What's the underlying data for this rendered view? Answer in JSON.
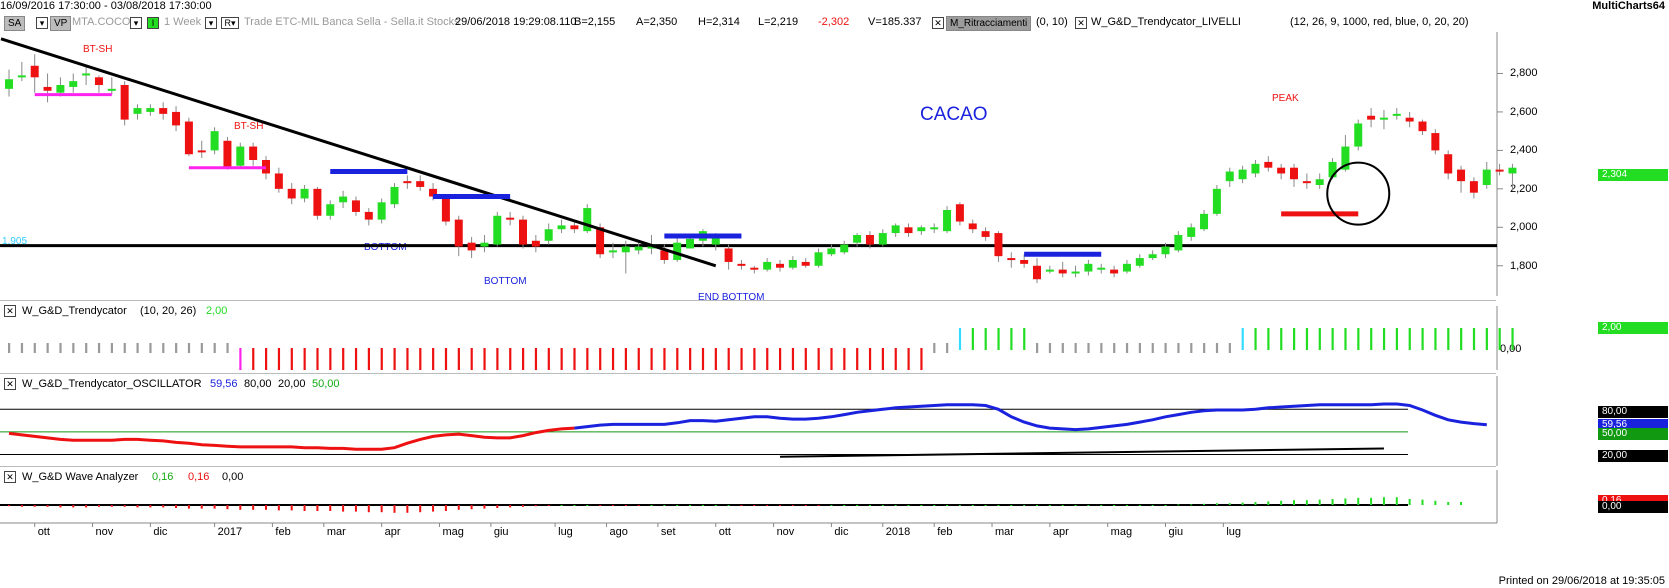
{
  "header": {
    "date_range": "16/09/2016 17:30:00 - 03/08/2018 17:30:00",
    "app_name": "MultiCharts64",
    "sa_label": "SA",
    "vp_label": "VP",
    "symbol": "MTA.COCO",
    "interval": "1 Week",
    "r_label": "R",
    "feed": "Trade ETC-MIL Banca Sella - Sella.it Stocks",
    "datetime": "29/06/2018 19:29:08.110",
    "bid": "B=2,155",
    "ask": "A=2,350",
    "high": "H=2,314",
    "low": "L=2,219",
    "change": "-2,302",
    "volume": "V=185.337",
    "study1_name": "M_Ritracciamenti",
    "study1_params": "(0, 10)",
    "study2_name": "W_G&D_Trendycator_LIVELLI",
    "study2_params": "(12, 26, 9, 1000, red, blue, 0, 20, 20)"
  },
  "footer": {
    "printed": "Printed on 29/06/2018 at 19:35:05"
  },
  "colors": {
    "up": "#22dd22",
    "down": "#ee1111",
    "blue": "#1a22dd",
    "magenta": "#ff22ee",
    "price_badge": "#22dd22"
  },
  "chart_data": [
    {
      "type": "candlestick",
      "title": "CACAO",
      "price_badge": "2,304",
      "left_label": "1,905",
      "y_ticks": [
        "2,800",
        "2,600",
        "2,400",
        "2,200",
        "2,000",
        "1,800"
      ],
      "y_tick_values": [
        2800,
        2600,
        2400,
        2200,
        2000,
        1800
      ],
      "ylim": [
        1700,
        3000
      ],
      "annotations": [
        "BT-SH",
        "BT-SH",
        "BOTTOM",
        "BOTTOM",
        "END BOTTOM",
        "PEAK"
      ],
      "horizontal_line": 1905,
      "candles": [
        [
          2720,
          2770,
          2820,
          2680
        ],
        [
          2780,
          2790,
          2860,
          2760
        ],
        [
          2840,
          2780,
          2900,
          2700
        ],
        [
          2730,
          2710,
          2800,
          2650
        ],
        [
          2700,
          2740,
          2780,
          2680
        ],
        [
          2730,
          2760,
          2800,
          2700
        ],
        [
          2790,
          2800,
          2840,
          2740
        ],
        [
          2780,
          2740,
          2790,
          2700
        ],
        [
          2710,
          2720,
          2780,
          2690
        ],
        [
          2740,
          2560,
          2760,
          2530
        ],
        [
          2590,
          2620,
          2640,
          2560
        ],
        [
          2600,
          2620,
          2640,
          2580
        ],
        [
          2620,
          2590,
          2650,
          2560
        ],
        [
          2600,
          2530,
          2630,
          2500
        ],
        [
          2550,
          2380,
          2570,
          2370
        ],
        [
          2400,
          2390,
          2450,
          2360
        ],
        [
          2400,
          2500,
          2520,
          2380
        ],
        [
          2450,
          2310,
          2470,
          2300
        ],
        [
          2320,
          2420,
          2440,
          2310
        ],
        [
          2420,
          2350,
          2440,
          2320
        ],
        [
          2350,
          2280,
          2370,
          2250
        ],
        [
          2280,
          2200,
          2310,
          2180
        ],
        [
          2200,
          2150,
          2230,
          2120
        ],
        [
          2150,
          2200,
          2220,
          2130
        ],
        [
          2200,
          2060,
          2210,
          2040
        ],
        [
          2060,
          2120,
          2140,
          2040
        ],
        [
          2130,
          2160,
          2190,
          2100
        ],
        [
          2140,
          2080,
          2160,
          2060
        ],
        [
          2080,
          2040,
          2100,
          2010
        ],
        [
          2040,
          2130,
          2150,
          2020
        ],
        [
          2120,
          2210,
          2230,
          2100
        ],
        [
          2240,
          2230,
          2270,
          2200
        ],
        [
          2240,
          2210,
          2270,
          2190
        ],
        [
          2200,
          2160,
          2230,
          2140
        ],
        [
          2150,
          2030,
          2170,
          2010
        ],
        [
          2040,
          1900,
          2060,
          1850
        ],
        [
          1920,
          1880,
          1950,
          1840
        ],
        [
          1900,
          1920,
          1960,
          1870
        ],
        [
          1910,
          2060,
          2080,
          1900
        ],
        [
          2050,
          2040,
          2080,
          2010
        ],
        [
          2040,
          1910,
          2060,
          1890
        ],
        [
          1930,
          1900,
          1960,
          1870
        ],
        [
          1930,
          1990,
          2020,
          1910
        ],
        [
          1990,
          2010,
          2040,
          1970
        ],
        [
          2010,
          1990,
          2040,
          1970
        ],
        [
          1980,
          2100,
          2120,
          1970
        ],
        [
          2000,
          1860,
          2020,
          1840
        ],
        [
          1870,
          1880,
          1920,
          1840
        ],
        [
          1870,
          1900,
          1930,
          1760
        ],
        [
          1880,
          1900,
          1930,
          1860
        ],
        [
          1900,
          1900,
          1960,
          1860
        ],
        [
          1880,
          1830,
          1910,
          1810
        ],
        [
          1830,
          1920,
          1960,
          1820
        ],
        [
          1890,
          1940,
          1950,
          1890
        ],
        [
          1930,
          1980,
          1990,
          1900
        ],
        [
          1910,
          1950,
          1970,
          1880
        ],
        [
          1890,
          1820,
          1910,
          1780
        ],
        [
          1810,
          1800,
          1830,
          1780
        ],
        [
          1790,
          1780,
          1800,
          1760
        ],
        [
          1780,
          1820,
          1840,
          1770
        ],
        [
          1810,
          1790,
          1830,
          1770
        ],
        [
          1790,
          1830,
          1850,
          1780
        ],
        [
          1820,
          1800,
          1840,
          1790
        ],
        [
          1800,
          1870,
          1890,
          1790
        ],
        [
          1860,
          1890,
          1910,
          1850
        ],
        [
          1870,
          1910,
          1930,
          1860
        ],
        [
          1920,
          1960,
          1970,
          1900
        ],
        [
          1960,
          1910,
          1980,
          1890
        ],
        [
          1910,
          1970,
          1990,
          1900
        ],
        [
          1970,
          2010,
          2020,
          1950
        ],
        [
          2000,
          1970,
          2020,
          1950
        ],
        [
          1980,
          2000,
          2010,
          1960
        ],
        [
          2000,
          2000,
          2020,
          1970
        ],
        [
          1980,
          2090,
          2110,
          1970
        ],
        [
          2120,
          2030,
          2130,
          2010
        ],
        [
          2020,
          1990,
          2040,
          1970
        ],
        [
          1980,
          1950,
          2000,
          1930
        ],
        [
          1970,
          1850,
          1980,
          1820
        ],
        [
          1840,
          1830,
          1870,
          1790
        ],
        [
          1830,
          1810,
          1860,
          1790
        ],
        [
          1800,
          1730,
          1840,
          1710
        ],
        [
          1780,
          1780,
          1800,
          1760
        ],
        [
          1780,
          1760,
          1820,
          1740
        ],
        [
          1760,
          1770,
          1800,
          1740
        ],
        [
          1770,
          1810,
          1830,
          1750
        ],
        [
          1780,
          1790,
          1810,
          1760
        ],
        [
          1780,
          1760,
          1800,
          1740
        ],
        [
          1770,
          1810,
          1830,
          1760
        ],
        [
          1800,
          1840,
          1860,
          1790
        ],
        [
          1840,
          1860,
          1880,
          1830
        ],
        [
          1860,
          1900,
          1920,
          1840
        ],
        [
          1880,
          1960,
          1980,
          1870
        ],
        [
          1950,
          2000,
          2020,
          1930
        ],
        [
          1990,
          2070,
          2090,
          1980
        ],
        [
          2070,
          2200,
          2220,
          2060
        ],
        [
          2240,
          2290,
          2310,
          2210
        ],
        [
          2250,
          2300,
          2320,
          2230
        ],
        [
          2280,
          2330,
          2350,
          2260
        ],
        [
          2340,
          2310,
          2370,
          2290
        ],
        [
          2310,
          2280,
          2330,
          2250
        ],
        [
          2310,
          2250,
          2330,
          2210
        ],
        [
          2240,
          2230,
          2280,
          2200
        ],
        [
          2220,
          2250,
          2280,
          2200
        ],
        [
          2260,
          2340,
          2360,
          2250
        ],
        [
          2300,
          2420,
          2480,
          2290
        ],
        [
          2420,
          2540,
          2560,
          2400
        ],
        [
          2580,
          2560,
          2620,
          2520
        ],
        [
          2560,
          2570,
          2610,
          2510
        ],
        [
          2580,
          2590,
          2620,
          2560
        ],
        [
          2570,
          2550,
          2600,
          2520
        ],
        [
          2550,
          2500,
          2560,
          2480
        ],
        [
          2490,
          2400,
          2510,
          2380
        ],
        [
          2380,
          2280,
          2400,
          2250
        ],
        [
          2300,
          2240,
          2320,
          2180
        ],
        [
          2240,
          2180,
          2260,
          2150
        ],
        [
          2220,
          2300,
          2340,
          2200
        ],
        [
          2300,
          2290,
          2330,
          2270
        ],
        [
          2280,
          2310,
          2330,
          2190
        ]
      ]
    },
    {
      "type": "bar",
      "title": "W_G&D_Trendycator",
      "params": "(10, 20, 26)",
      "value_label": "2,00",
      "y_ticks": [
        "2,00",
        "0,00"
      ],
      "y_tick_values": [
        2,
        0
      ],
      "ylim": [
        -3,
        2.6
      ],
      "values": [
        0,
        0,
        0,
        0,
        0,
        0,
        0,
        0,
        0,
        0,
        0,
        0,
        0,
        0,
        0,
        0,
        0,
        0,
        0,
        0,
        0,
        0,
        0,
        0,
        0,
        0,
        0,
        0,
        0,
        0,
        0,
        0,
        0,
        0,
        0,
        0,
        0,
        0,
        0,
        0,
        0,
        0,
        0,
        0,
        0,
        0,
        0,
        0,
        0,
        0,
        0,
        0,
        0,
        0,
        0,
        0,
        0,
        0,
        0,
        0,
        0,
        0,
        0,
        0,
        0,
        0,
        0,
        0,
        0,
        0,
        0,
        0,
        0,
        0,
        0,
        0,
        0,
        0,
        0,
        0,
        0,
        0,
        0,
        0,
        0,
        0,
        0,
        0,
        0,
        0,
        0,
        0,
        0,
        0,
        0,
        0,
        0,
        0,
        0,
        0,
        0,
        0,
        0,
        0,
        0,
        0,
        0
      ],
      "states": [
        "g",
        "g",
        "g",
        "g",
        "g",
        "g",
        "g",
        "g",
        "g",
        "g",
        "g",
        "g",
        "g",
        "g",
        "g",
        "g",
        "g",
        "g",
        "m",
        "r",
        "r",
        "r",
        "r",
        "r",
        "r",
        "r",
        "r",
        "r",
        "r",
        "r",
        "r",
        "r",
        "r",
        "r",
        "r",
        "r",
        "r",
        "r",
        "r",
        "r",
        "r",
        "r",
        "r",
        "r",
        "r",
        "r",
        "r",
        "r",
        "r",
        "r",
        "r",
        "r",
        "r",
        "r",
        "r",
        "r",
        "r",
        "r",
        "r",
        "r",
        "r",
        "r",
        "r",
        "r",
        "r",
        "r",
        "r",
        "r",
        "r",
        "r",
        "r",
        "r",
        "g",
        "g",
        "c",
        "G",
        "G",
        "G",
        "G",
        "G",
        "g",
        "g",
        "g",
        "g",
        "g",
        "g",
        "g",
        "g",
        "g",
        "g",
        "g",
        "g",
        "g",
        "g",
        "g",
        "g",
        "c",
        "G",
        "G",
        "G",
        "G",
        "G",
        "G",
        "G",
        "G",
        "G",
        "G",
        "G",
        "G",
        "G",
        "G",
        "G",
        "G",
        "G",
        "G",
        "G",
        "G",
        "G",
        "G",
        "G",
        "G"
      ]
    },
    {
      "type": "line",
      "title": "W_G&D_Trendycator_OSCILLATOR",
      "legend_values": [
        "59,56",
        "80,00",
        "20,00",
        "50,00"
      ],
      "y_ticks": [
        "80,00",
        "59,56",
        "50,00",
        "20,00"
      ],
      "y_tick_values": [
        80,
        59.56,
        50,
        20
      ],
      "levels": [
        80,
        50,
        20
      ],
      "ylim": [
        10,
        95
      ],
      "values": [
        48,
        46,
        44,
        42,
        40,
        39,
        39,
        39,
        39,
        40,
        40,
        39,
        38,
        36,
        35,
        33,
        32,
        31,
        30,
        30,
        30,
        30,
        30,
        29,
        29,
        28,
        28,
        27,
        27,
        27,
        29,
        35,
        40,
        44,
        46,
        47,
        45,
        43,
        42,
        42,
        45,
        49,
        52,
        54,
        55,
        57,
        59,
        60,
        60,
        60,
        60,
        60,
        62,
        65,
        65,
        64,
        66,
        68,
        70,
        70,
        68,
        67,
        67,
        68,
        70,
        73,
        76,
        78,
        80,
        82,
        83,
        84,
        85,
        86,
        86,
        86,
        85,
        80,
        70,
        63,
        58,
        55,
        54,
        53,
        54,
        56,
        58,
        60,
        63,
        66,
        70,
        73,
        76,
        78,
        79,
        79,
        79,
        80,
        82,
        83,
        84,
        85,
        86,
        86,
        86,
        86,
        86,
        87,
        87,
        85,
        79,
        72,
        66,
        63,
        61,
        59.56
      ],
      "trend_line": [
        [
          60,
          17
        ],
        [
          107,
          28
        ]
      ]
    },
    {
      "type": "bar",
      "title": "W_G&D Wave Analyzer",
      "legend_values": [
        "0,16",
        "0,16",
        "0,00"
      ],
      "y_ticks": [
        "0,16",
        "0,00"
      ],
      "y_tick_values": [
        0.16,
        0
      ],
      "ylim": [
        -0.25,
        0.25
      ],
      "values": [
        -0.02,
        -0.03,
        -0.03,
        -0.03,
        -0.04,
        -0.04,
        -0.04,
        -0.03,
        -0.03,
        -0.03,
        -0.04,
        -0.04,
        -0.04,
        -0.05,
        -0.06,
        -0.06,
        -0.06,
        -0.07,
        -0.08,
        -0.08,
        -0.08,
        -0.09,
        -0.09,
        -0.1,
        -0.1,
        -0.1,
        -0.11,
        -0.11,
        -0.12,
        -0.12,
        -0.13,
        -0.13,
        -0.12,
        -0.11,
        -0.1,
        -0.08,
        -0.07,
        -0.06,
        -0.05,
        -0.04,
        -0.03,
        -0.02,
        -0.01,
        0,
        0,
        0,
        -0.01,
        -0.01,
        -0.01,
        -0.01,
        0,
        0,
        0,
        0,
        0,
        0,
        0,
        -0.01,
        -0.01,
        -0.01,
        -0.01,
        -0.01,
        -0.01,
        -0.01,
        0,
        0,
        0,
        0,
        0,
        0,
        0,
        0,
        0,
        0,
        0,
        0,
        0,
        0,
        0,
        0,
        0,
        0,
        0,
        0,
        0,
        0,
        0,
        0,
        0,
        0,
        0,
        0.01,
        0.01,
        0.02,
        0.03,
        0.03,
        0.04,
        0.05,
        0.06,
        0.07,
        0.08,
        0.08,
        0.09,
        0.1,
        0.11,
        0.12,
        0.12,
        0.13,
        0.13,
        0.1,
        0.09,
        0.07,
        0.05,
        0.05
      ],
      "badge_values": [
        "0,16",
        "0,00"
      ]
    }
  ],
  "x_axis": {
    "labels": [
      "ott",
      "nov",
      "dic",
      "2017",
      "feb",
      "mar",
      "apr",
      "mag",
      "giu",
      "lug",
      "ago",
      "set",
      "ott",
      "nov",
      "dic",
      "2018",
      "feb",
      "mar",
      "apr",
      "mag",
      "giu",
      "lug"
    ],
    "bar_index": [
      2,
      6.5,
      11,
      16,
      20.5,
      24.5,
      29,
      33.5,
      37.5,
      42.5,
      46.5,
      50.5,
      55,
      59.5,
      64,
      68,
      72,
      76.5,
      81,
      85.5,
      90,
      94.5
    ]
  }
}
